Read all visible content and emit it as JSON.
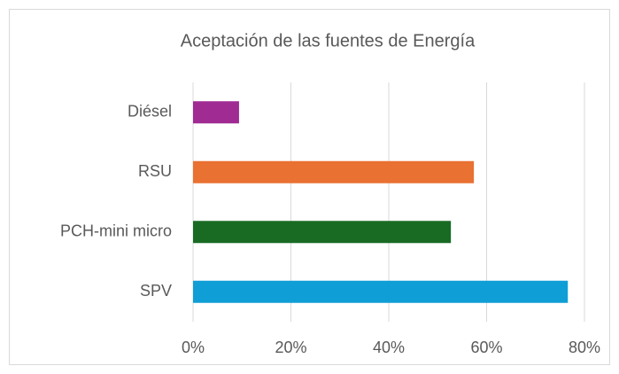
{
  "chart_data": {
    "type": "bar",
    "orientation": "horizontal",
    "title": "Aceptación de las fuentes de Energía",
    "categories": [
      "Diésel",
      "RSU",
      "PCH-mini micro",
      "SPV"
    ],
    "values": [
      9.4,
      57.4,
      52.7,
      76.6
    ],
    "colors": [
      "#a02b93",
      "#e97132",
      "#196b24",
      "#0f9ed5"
    ],
    "xlim": [
      0,
      80
    ],
    "xticks": [
      {
        "value": 0,
        "label": "0%"
      },
      {
        "value": 20,
        "label": "20%"
      },
      {
        "value": 40,
        "label": "40%"
      },
      {
        "value": 60,
        "label": "60%"
      },
      {
        "value": 80,
        "label": "80%"
      }
    ],
    "grid": true
  }
}
